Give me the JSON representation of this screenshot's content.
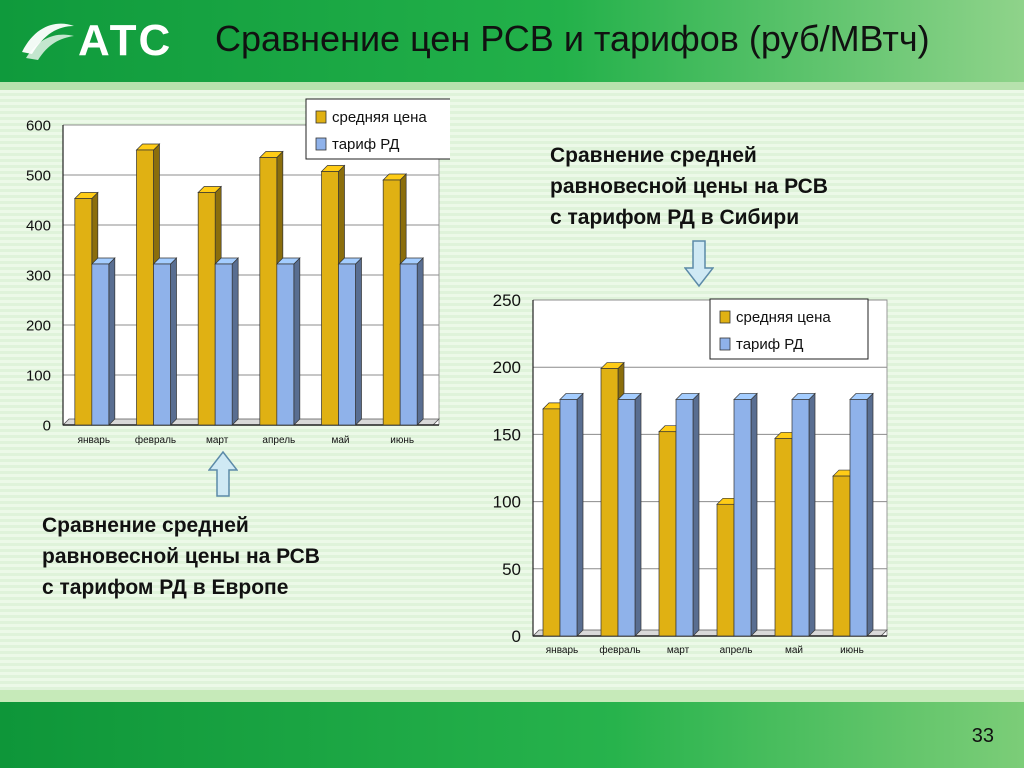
{
  "header": {
    "logo_text": "АТС",
    "title": "Сравнение цен РСВ и тарифов (руб/МВтч)"
  },
  "page_number": "33",
  "colors": {
    "avg_price": "#e0b113",
    "tariff": "#8fb2ea",
    "header_green": "#1aa845"
  },
  "captions": {
    "siberia": [
      "Сравнение средней",
      "равновесной цены на РСВ",
      "с тарифом РД в Сибири"
    ],
    "europe": [
      "Сравнение средней",
      "равновесной цены на РСВ",
      "с тарифом РД в Европе"
    ]
  },
  "icons": {
    "siberia_arrow": "arrow-down-icon",
    "europe_arrow": "arrow-up-icon",
    "logo": "atc-logo-icon"
  },
  "chart_data": [
    {
      "type": "bar",
      "categories": [
        "январь",
        "февраль",
        "март",
        "апрель",
        "май",
        "июнь"
      ],
      "series": [
        {
          "name": "средняя цена",
          "values": [
            453,
            550,
            465,
            535,
            507,
            490
          ]
        },
        {
          "name": "тариф РД",
          "values": [
            322,
            322,
            322,
            322,
            322,
            322
          ]
        }
      ],
      "ylim": [
        0,
        600
      ],
      "yticks": [
        0,
        100,
        200,
        300,
        400,
        500,
        600
      ],
      "legend": "top-right",
      "grid": true
    },
    {
      "type": "bar",
      "categories": [
        "январь",
        "февраль",
        "март",
        "апрель",
        "май",
        "июнь"
      ],
      "series": [
        {
          "name": "средняя цена",
          "values": [
            169,
            199,
            152,
            98,
            147,
            119
          ]
        },
        {
          "name": "тариф РД",
          "values": [
            176,
            176,
            176,
            176,
            176,
            176
          ]
        }
      ],
      "ylim": [
        0,
        250
      ],
      "yticks": [
        0,
        50,
        100,
        150,
        200,
        250
      ],
      "legend": "top-right",
      "grid": true
    }
  ]
}
